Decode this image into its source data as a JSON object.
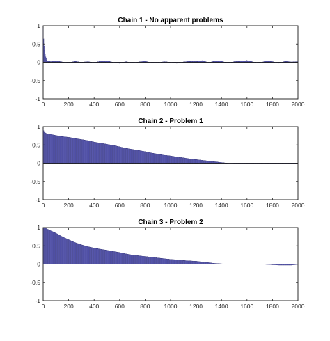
{
  "chart_data": [
    {
      "type": "bar",
      "title": "Chain 1 - No apparent problems",
      "xlabel": "",
      "ylabel": "",
      "xlim": [
        0,
        2000
      ],
      "ylim": [
        -1,
        1
      ],
      "xticks": [
        0,
        200,
        400,
        600,
        800,
        1000,
        1200,
        1400,
        1600,
        1800,
        2000
      ],
      "yticks": [
        -1,
        -0.5,
        0,
        0.5,
        1
      ],
      "xtick_labels": [
        "0",
        "200",
        "400",
        "600",
        "800",
        "1000",
        "1200",
        "1400",
        "1600",
        "1800",
        "2000"
      ],
      "ytick_labels": [
        "-1",
        "-0.5",
        "0",
        "0.5",
        "1"
      ],
      "bar_color": "#5b5bb8",
      "edge_color": "#202060",
      "x": [
        0,
        5,
        10,
        15,
        20,
        25,
        30,
        40,
        60,
        100,
        150,
        200,
        250,
        300,
        350,
        400,
        450,
        500,
        550,
        600,
        650,
        700,
        750,
        800,
        850,
        900,
        950,
        1000,
        1050,
        1100,
        1150,
        1200,
        1250,
        1300,
        1350,
        1400,
        1450,
        1500,
        1550,
        1600,
        1650,
        1700,
        1750,
        1800,
        1850,
        1900,
        1950,
        2000
      ],
      "values": [
        1.0,
        0.55,
        0.38,
        0.25,
        0.15,
        0.09,
        0.05,
        0.03,
        0.02,
        0.04,
        0.01,
        -0.02,
        0.03,
        0.0,
        0.02,
        -0.01,
        0.03,
        0.04,
        0.0,
        -0.03,
        0.02,
        -0.02,
        0.01,
        0.03,
        -0.01,
        -0.02,
        0.02,
        0.0,
        -0.03,
        0.01,
        0.03,
        0.02,
        0.05,
        -0.01,
        0.04,
        0.03,
        -0.02,
        0.02,
        0.03,
        0.05,
        0.01,
        -0.02,
        0.04,
        0.02,
        -0.03,
        0.03,
        0.01,
        0.02
      ]
    },
    {
      "type": "bar",
      "title": "Chain 2 - Problem 1",
      "xlabel": "",
      "ylabel": "",
      "xlim": [
        0,
        2000
      ],
      "ylim": [
        -1,
        1
      ],
      "xticks": [
        0,
        200,
        400,
        600,
        800,
        1000,
        1200,
        1400,
        1600,
        1800,
        2000
      ],
      "yticks": [
        -1,
        -0.5,
        0,
        0.5,
        1
      ],
      "xtick_labels": [
        "0",
        "200",
        "400",
        "600",
        "800",
        "1000",
        "1200",
        "1400",
        "1600",
        "1800",
        "2000"
      ],
      "ytick_labels": [
        "-1",
        "-0.5",
        "0",
        "0.5",
        "1"
      ],
      "bar_color": "#5b5bb8",
      "edge_color": "#202060",
      "x": [
        0,
        5,
        15,
        30,
        60,
        100,
        150,
        200,
        250,
        300,
        350,
        400,
        450,
        500,
        550,
        600,
        650,
        700,
        750,
        800,
        850,
        900,
        950,
        1000,
        1050,
        1100,
        1150,
        1200,
        1250,
        1300,
        1350,
        1400,
        1450,
        1500,
        1550,
        1600,
        1650,
        1700,
        1750,
        1800,
        1850,
        1900,
        1950,
        2000
      ],
      "values": [
        0.95,
        0.88,
        0.84,
        0.8,
        0.79,
        0.76,
        0.73,
        0.71,
        0.68,
        0.65,
        0.62,
        0.58,
        0.55,
        0.52,
        0.49,
        0.45,
        0.41,
        0.38,
        0.35,
        0.32,
        0.28,
        0.25,
        0.22,
        0.2,
        0.17,
        0.15,
        0.12,
        0.1,
        0.08,
        0.06,
        0.04,
        0.02,
        0.0,
        -0.01,
        -0.02,
        -0.02,
        -0.02,
        -0.01,
        -0.01,
        -0.01,
        -0.01,
        -0.01,
        -0.01,
        -0.01
      ]
    },
    {
      "type": "bar",
      "title": "Chain 3 - Problem 2",
      "xlabel": "",
      "ylabel": "",
      "xlim": [
        0,
        2000
      ],
      "ylim": [
        -1,
        1
      ],
      "xticks": [
        0,
        200,
        400,
        600,
        800,
        1000,
        1200,
        1400,
        1600,
        1800,
        2000
      ],
      "yticks": [
        -1,
        -0.5,
        0,
        0.5,
        1
      ],
      "xtick_labels": [
        "0",
        "200",
        "400",
        "600",
        "800",
        "1000",
        "1200",
        "1400",
        "1600",
        "1800",
        "2000"
      ],
      "ytick_labels": [
        "-1",
        "-0.5",
        "0",
        "0.5",
        "1"
      ],
      "bar_color": "#5b5bb8",
      "edge_color": "#202060",
      "x": [
        0,
        20,
        50,
        100,
        150,
        200,
        250,
        300,
        350,
        400,
        450,
        500,
        550,
        600,
        650,
        700,
        750,
        800,
        850,
        900,
        950,
        1000,
        1050,
        1100,
        1150,
        1200,
        1250,
        1300,
        1350,
        1400,
        1450,
        1500,
        1550,
        1600,
        1650,
        1700,
        1750,
        1800,
        1850,
        1900,
        1950,
        2000
      ],
      "values": [
        1.0,
        0.98,
        0.93,
        0.85,
        0.75,
        0.67,
        0.59,
        0.53,
        0.48,
        0.44,
        0.41,
        0.38,
        0.35,
        0.32,
        0.28,
        0.25,
        0.23,
        0.21,
        0.19,
        0.17,
        0.15,
        0.13,
        0.12,
        0.1,
        0.09,
        0.08,
        0.06,
        0.04,
        0.02,
        0.01,
        0.0,
        0.0,
        0.0,
        0.0,
        0.0,
        0.0,
        -0.01,
        -0.02,
        -0.03,
        -0.03,
        -0.03,
        -0.01
      ]
    }
  ]
}
